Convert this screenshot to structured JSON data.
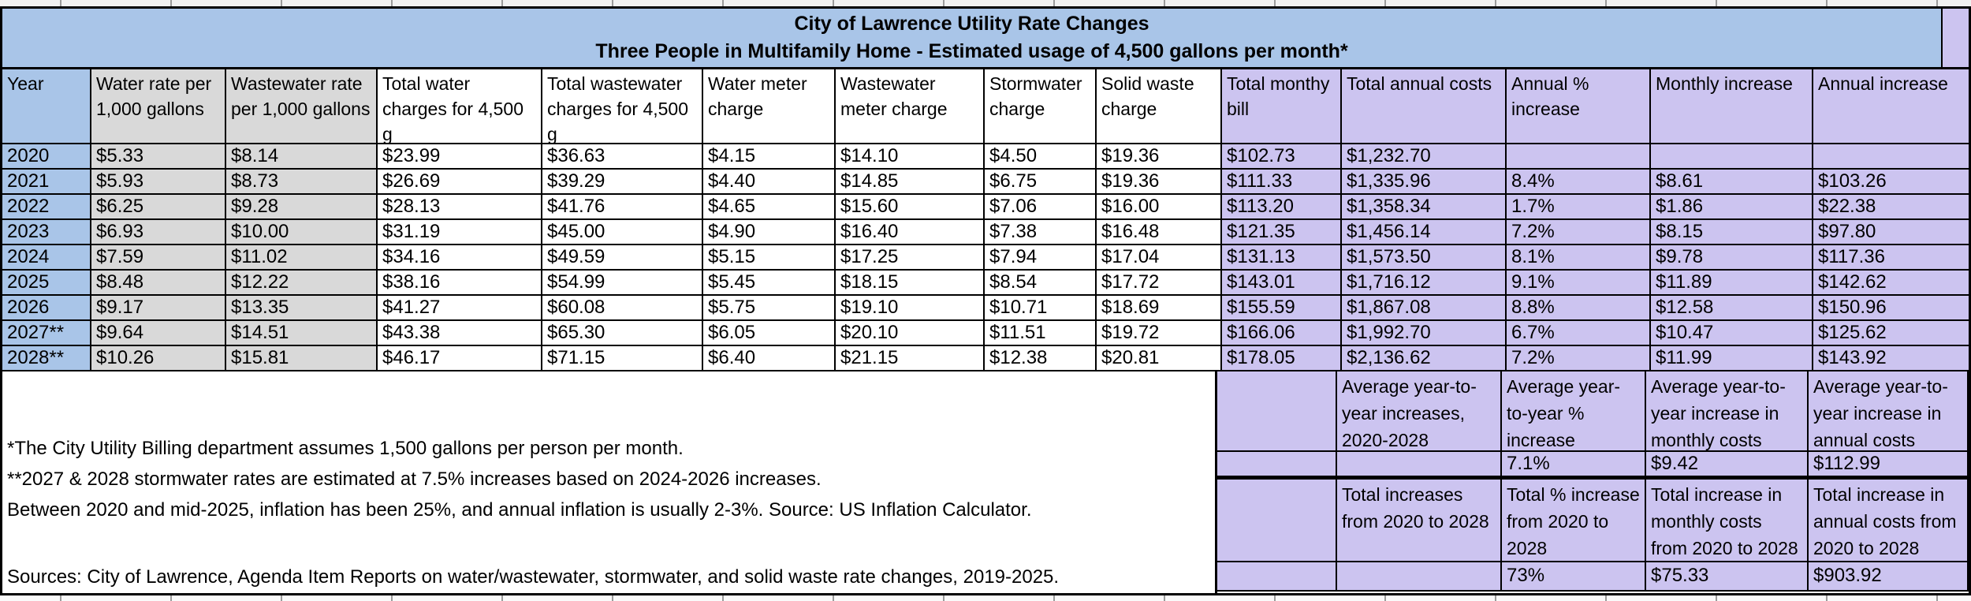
{
  "title": {
    "line1": "City of Lawrence Utility Rate Changes",
    "line2": "Three People in Multifamily Home - Estimated usage of 4,500 gallons per month*"
  },
  "table": {
    "columns": [
      "Year",
      "Water rate per 1,000 gallons",
      "Wastewater rate per 1,000 gallons",
      "Total water charges for 4,500 g",
      "Total wastewater charges for 4,500 g",
      "Water meter charge",
      "Wastewater meter charge",
      "Stormwater charge",
      "Solid waste charge",
      "Total monthy bill",
      "Total annual costs",
      "Annual % increase",
      "Monthly increase",
      "Annual increase"
    ],
    "rows": [
      [
        "2020",
        "$5.33",
        "$8.14",
        "$23.99",
        "$36.63",
        "$4.15",
        "$14.10",
        "$4.50",
        "$19.36",
        "$102.73",
        "$1,232.70",
        "",
        "",
        ""
      ],
      [
        "2021",
        "$5.93",
        "$8.73",
        "$26.69",
        "$39.29",
        "$4.40",
        "$14.85",
        "$6.75",
        "$19.36",
        "$111.33",
        "$1,335.96",
        "8.4%",
        "$8.61",
        "$103.26"
      ],
      [
        "2022",
        "$6.25",
        "$9.28",
        "$28.13",
        "$41.76",
        "$4.65",
        "$15.60",
        "$7.06",
        "$16.00",
        "$113.20",
        "$1,358.34",
        "1.7%",
        "$1.86",
        "$22.38"
      ],
      [
        "2023",
        "$6.93",
        "$10.00",
        "$31.19",
        "$45.00",
        "$4.90",
        "$16.40",
        "$7.38",
        "$16.48",
        "$121.35",
        "$1,456.14",
        "7.2%",
        "$8.15",
        "$97.80"
      ],
      [
        "2024",
        "$7.59",
        "$11.02",
        "$34.16",
        "$49.59",
        "$5.15",
        "$17.25",
        "$7.94",
        "$17.04",
        "$131.13",
        "$1,573.50",
        "8.1%",
        "$9.78",
        "$117.36"
      ],
      [
        "2025",
        "$8.48",
        "$12.22",
        "$38.16",
        "$54.99",
        "$5.45",
        "$18.15",
        "$8.54",
        "$17.72",
        "$143.01",
        "$1,716.12",
        "9.1%",
        "$11.89",
        "$142.62"
      ],
      [
        "2026",
        "$9.17",
        "$13.35",
        "$41.27",
        "$60.08",
        "$5.75",
        "$19.10",
        "$10.71",
        "$18.69",
        "$155.59",
        "$1,867.08",
        "8.8%",
        "$12.58",
        "$150.96"
      ],
      [
        "2027**",
        "$9.64",
        "$14.51",
        "$43.38",
        "$65.30",
        "$6.05",
        "$20.10",
        "$11.51",
        "$19.72",
        "$166.06",
        "$1,992.70",
        "6.7%",
        "$10.47",
        "$125.62"
      ],
      [
        "2028**",
        "$10.26",
        "$15.81",
        "$46.17",
        "$71.15",
        "$6.40",
        "$21.15",
        "$12.38",
        "$20.81",
        "$178.05",
        "$2,136.62",
        "7.2%",
        "$11.99",
        "$143.92"
      ]
    ]
  },
  "summary": {
    "rows": [
      [
        "",
        "Average year-to-year increases, 2020-2028",
        "Average year-to-year % increase",
        "Average year-to-year increase in monthly costs",
        "Average year-to-year increase in annual costs"
      ],
      [
        "",
        "",
        "7.1%",
        "$9.42",
        "$112.99"
      ],
      [
        "",
        "Total increases from 2020 to 2028",
        "Total % increase from 2020 to 2028",
        "Total increase in monthly costs from 2020 to 2028",
        "Total increase in annual costs from 2020 to 2028"
      ],
      [
        "",
        "",
        "73%",
        "$75.33",
        "$903.92"
      ]
    ]
  },
  "notes": [
    "*The City Utility Billing department assumes 1,500 gallons per person per month.",
    "**2027 & 2028 stormwater rates are estimated at 7.5% increases based on 2024-2026 increases.",
    "Between 2020 and mid-2025, inflation has been 25%, and annual inflation is usually 2-3%. Source: US Inflation Calculator."
  ],
  "sources": "Sources: City of Lawrence, Agenda Item Reports on water/wastewater, stormwater, and solid waste rate changes, 2019-2025.",
  "colors": {
    "blue": "#A9C5E8",
    "gray": "#D9D9D9",
    "lav": "#CCC4F0",
    "border": "#000000"
  }
}
